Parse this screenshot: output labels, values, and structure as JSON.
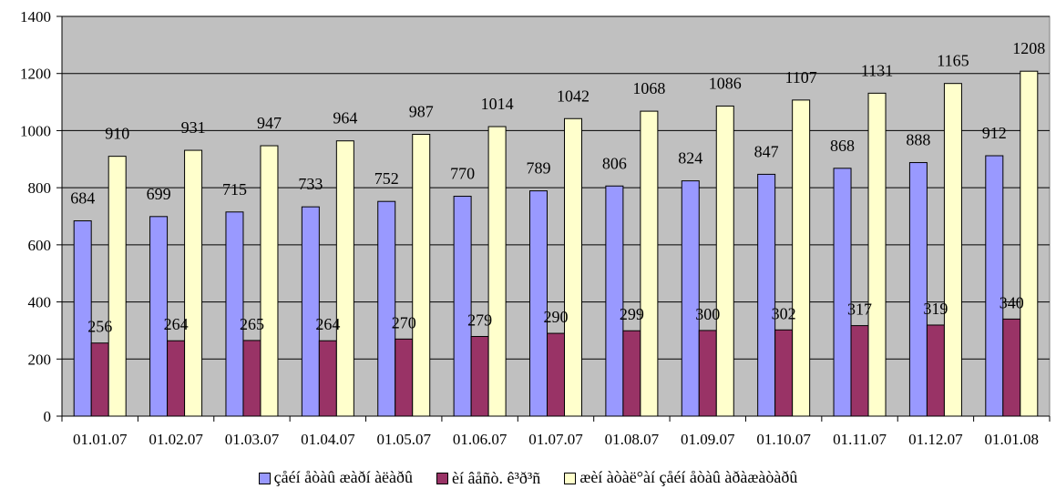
{
  "chart_data": {
    "type": "bar",
    "categories": [
      "01.01.07",
      "01.02.07",
      "01.03.07",
      "01.04.07",
      "01.05.07",
      "01.06.07",
      "01.07.07",
      "01.08.07",
      "01.09.07",
      "01.10.07",
      "01.11.07",
      "01.12.07",
      "01.01.08"
    ],
    "series": [
      {
        "name": "çåéí åòàû æàðí àëàðû",
        "color": "#9999ff",
        "values": [
          684,
          699,
          715,
          733,
          752,
          770,
          789,
          806,
          824,
          847,
          868,
          888,
          912
        ]
      },
      {
        "name": "èí âåñò. ê³ð³ñ",
        "color": "#993366",
        "values": [
          256,
          264,
          265,
          264,
          270,
          279,
          290,
          299,
          300,
          302,
          317,
          319,
          340
        ]
      },
      {
        "name": "æèí àòàë°àí çåéí åòàû àðàæàòàðû",
        "color": "#ffffcc",
        "values": [
          910,
          931,
          947,
          964,
          987,
          1014,
          1042,
          1068,
          1086,
          1107,
          1131,
          1165,
          1208
        ]
      }
    ],
    "ylim": [
      0,
      1400
    ],
    "yticks": [
      0,
      200,
      400,
      600,
      800,
      1000,
      1200,
      1400
    ],
    "grid": true,
    "plot_background": "#c0c0c0",
    "legend_position": "bottom"
  }
}
